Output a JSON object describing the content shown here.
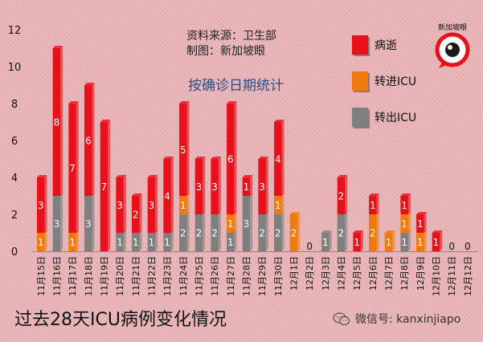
{
  "source_line1": "资料来源：卫生部",
  "source_line2": "制图：新加坡眼",
  "subtitle": "按确诊日期统计",
  "footer_title": "过去28天ICU病例变化情况",
  "wechat_label": "微信号: kanxinjiapo",
  "logo_text": "新加坡眼",
  "colors": {
    "death": "#e8101a",
    "to_icu": "#f07a0c",
    "out_icu": "#7f7f7f"
  },
  "legend": [
    {
      "label": "病逝",
      "color": "#e8101a"
    },
    {
      "label": "转进ICU",
      "color": "#f07a0c"
    },
    {
      "label": "转出ICU",
      "color": "#7f7f7f"
    }
  ],
  "chart_data": {
    "type": "bar",
    "stacked": true,
    "categories": [
      "11月15日",
      "11月16日",
      "11月17日",
      "11月18日",
      "11月19日",
      "11月20日",
      "11月21日",
      "11月22日",
      "11月23日",
      "11月24日",
      "11月25日",
      "11月26日",
      "11月27日",
      "11月28日",
      "11月29日",
      "11月30日",
      "12月1日",
      "12月2日",
      "12月3日",
      "12月4日",
      "12月5日",
      "12月6日",
      "12月7日",
      "12月8日",
      "12月9日",
      "12月10日",
      "12月11日",
      "12月12日"
    ],
    "series": [
      {
        "name": "转出ICU",
        "values": [
          0,
          3,
          0,
          3,
          0,
          1,
          1,
          1,
          1,
          2,
          2,
          2,
          1,
          3,
          2,
          2,
          0,
          0,
          1,
          2,
          0,
          0,
          0,
          1,
          0,
          0,
          0,
          0
        ]
      },
      {
        "name": "转进ICU",
        "values": [
          1,
          0,
          1,
          0,
          0,
          0,
          0,
          0,
          0,
          1,
          0,
          0,
          1,
          0,
          0,
          1,
          2,
          0,
          0,
          0,
          0,
          2,
          1,
          1,
          1,
          0,
          0,
          0
        ]
      },
      {
        "name": "病逝",
        "values": [
          3,
          8,
          7,
          6,
          7,
          3,
          2,
          3,
          4,
          5,
          3,
          3,
          6,
          1,
          3,
          4,
          0,
          0,
          0,
          2,
          1,
          1,
          0,
          1,
          1,
          1,
          0,
          0
        ]
      }
    ],
    "totals": [
      4,
      11,
      8,
      9,
      7,
      4,
      3,
      4,
      5,
      8,
      5,
      5,
      8,
      4,
      5,
      7,
      2,
      0,
      1,
      4,
      1,
      3,
      1,
      3,
      2,
      1,
      0,
      0
    ],
    "ylim": [
      0,
      12
    ],
    "yticks": [
      0,
      2,
      4,
      6,
      8,
      10,
      12
    ],
    "grid": false,
    "legend_position": "top-right"
  }
}
